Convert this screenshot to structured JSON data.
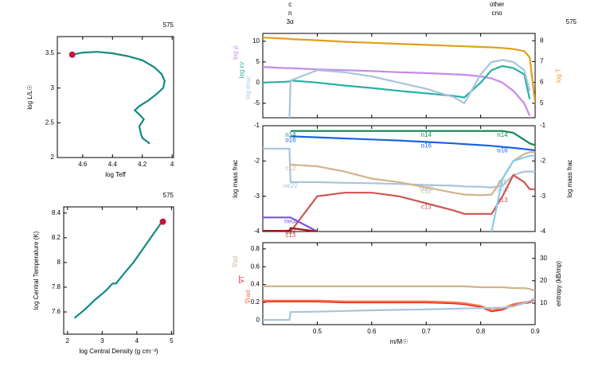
{
  "chart_data": [
    {
      "type": "line",
      "corner_label": "575",
      "xlabel": "log Teff",
      "ylabel": "log L/L☉",
      "xlim": [
        4.77,
        3.99
      ],
      "xticks": [
        4.6,
        4.4,
        4.2,
        4
      ],
      "ylim": [
        2,
        3.74
      ],
      "yticks": [
        2,
        2.5,
        3,
        3.5
      ],
      "x": [
        4.67,
        4.6,
        4.5,
        4.4,
        4.3,
        4.2,
        4.12,
        4.07,
        4.05,
        4.06,
        4.1,
        4.16,
        4.22,
        4.25,
        4.22,
        4.19,
        4.22,
        4.21,
        4.2,
        4.15
      ],
      "series": [
        {
          "color": "#138a82",
          "values": [
            3.48,
            3.51,
            3.52,
            3.5,
            3.46,
            3.4,
            3.3,
            3.2,
            3.1,
            3.0,
            2.92,
            2.82,
            2.74,
            2.68,
            2.62,
            2.55,
            2.45,
            2.35,
            2.28,
            2.2
          ]
        }
      ],
      "marker": {
        "x": 4.67,
        "y": 3.48,
        "color": "#c4173b"
      }
    },
    {
      "type": "line",
      "corner_label": "575",
      "xlabel": "log Central Density (g cm⁻³)",
      "ylabel": "log Central Temperature (K)",
      "xlim": [
        1.89,
        5.06
      ],
      "xticks": [
        2,
        3,
        4,
        5
      ],
      "ylim": [
        7.42,
        8.45
      ],
      "yticks": [
        7.6,
        7.8,
        8,
        8.2,
        8.4
      ],
      "x": [
        2.2,
        2.5,
        2.8,
        3.1,
        3.3,
        3.4,
        3.6,
        3.9,
        4.2,
        4.5,
        4.7
      ],
      "series": [
        {
          "color": "#138a82",
          "values": [
            7.55,
            7.62,
            7.7,
            7.77,
            7.83,
            7.83,
            7.9,
            8.0,
            8.12,
            8.24,
            8.32
          ]
        }
      ],
      "marker": {
        "x": 4.75,
        "y": 8.33,
        "color": "#c4173b"
      }
    },
    {
      "type": "line",
      "corner_label": "575",
      "legend": "left",
      "top_labels": [
        {
          "x": 0.45,
          "lines": [
            "c",
            "n",
            "3α"
          ]
        },
        {
          "x": 0.83,
          "lines": [
            "other",
            "cno"
          ]
        }
      ],
      "xlim": [
        0.4,
        0.9
      ],
      "xticks": [
        0.5,
        0.6,
        0.7,
        0.8,
        0.9
      ],
      "ylim": [
        -8.5,
        11.9
      ],
      "yticks": [
        -5,
        0,
        5,
        10
      ],
      "y2lim": [
        4.3,
        8.35
      ],
      "y2ticks": [
        5,
        6,
        7,
        8
      ],
      "x": [
        0.4,
        0.44,
        0.449,
        0.451,
        0.5,
        0.55,
        0.6,
        0.65,
        0.7,
        0.75,
        0.77,
        0.8,
        0.82,
        0.84,
        0.86,
        0.88,
        0.89,
        0.9
      ],
      "series": [
        {
          "name": "log T",
          "color": "#e0a018",
          "axis": "y2",
          "values": [
            8.15,
            8.1,
            8.09,
            8.08,
            8.02,
            7.95,
            7.9,
            7.85,
            7.8,
            7.75,
            7.73,
            7.7,
            7.68,
            7.65,
            7.6,
            7.5,
            7.2,
            5.0
          ]
        },
        {
          "name": "log ρ",
          "color": "#c58be8",
          "values": [
            3.8,
            3.5,
            3.5,
            3.5,
            3.2,
            3.0,
            2.8,
            2.5,
            2.3,
            2.0,
            1.9,
            1.5,
            1.0,
            0.0,
            -2,
            -5,
            -8,
            null
          ]
        },
        {
          "name": "log εν",
          "color": "#27b0a6",
          "values": [
            0,
            0.2,
            0.3,
            0.5,
            0,
            -0.7,
            -1.3,
            -2,
            -2.6,
            -3.2,
            -3.6,
            0,
            3,
            4,
            3.5,
            2,
            -4,
            null
          ]
        },
        {
          "name": "log εnuc",
          "color": "#aac4dc",
          "values": [
            null,
            null,
            -8.5,
            0.5,
            3,
            2.5,
            1.5,
            0,
            -1.5,
            -3.5,
            -5,
            2,
            5,
            5.5,
            5,
            3,
            -2,
            null
          ]
        }
      ]
    },
    {
      "type": "line",
      "legend": "inline",
      "ylabel": "log mass frac",
      "y2label": "log mass frac",
      "xlim": [
        0.4,
        0.9
      ],
      "xticks": [
        0.5,
        0.6,
        0.7,
        0.8,
        0.9
      ],
      "ylim": [
        -4,
        -1
      ],
      "yticks": [
        -4,
        -3,
        -2,
        -1
      ],
      "y2lim": [
        -4,
        -1
      ],
      "y2ticks": [
        -4,
        -3,
        -2,
        -1
      ],
      "x": [
        0.4,
        0.44,
        0.449,
        0.451,
        0.5,
        0.55,
        0.6,
        0.65,
        0.7,
        0.75,
        0.77,
        0.8,
        0.82,
        0.84,
        0.86,
        0.88,
        0.89,
        0.9
      ],
      "series": [
        {
          "name": "ne22",
          "color": "#aac4dc",
          "values": [
            -1.65,
            -1.65,
            -1.65,
            -2.6,
            -2.6,
            -2.62,
            -2.63,
            -2.65,
            -2.68,
            -2.7,
            -2.72,
            -2.73,
            -2.75,
            -2.7,
            -2.4,
            -2.3,
            -2.3,
            -2.3
          ]
        },
        {
          "name": "c12",
          "color": "#d2b48c",
          "values": [
            null,
            null,
            null,
            -2.1,
            -2.15,
            -2.3,
            -2.5,
            -2.6,
            -2.75,
            -2.9,
            -2.95,
            -2.97,
            -2.95,
            -2.5,
            -2.0,
            -1.8,
            -1.75,
            -1.75
          ]
        },
        {
          "name": "c13",
          "color": "#cd5555",
          "values": [
            null,
            null,
            null,
            -4,
            -3.0,
            -2.9,
            -2.9,
            -3.0,
            -3.2,
            -3.4,
            -3.5,
            -3.5,
            -3.5,
            -3.0,
            -2.4,
            -2.6,
            -2.8,
            -2.8
          ]
        },
        {
          "name": "h1",
          "color": "#87cbec",
          "values": [
            null,
            null,
            null,
            null,
            null,
            null,
            null,
            null,
            null,
            null,
            null,
            null,
            -4,
            -2.5,
            -2.0,
            -1.9,
            -1.85,
            -1.85
          ]
        },
        {
          "name": "o16",
          "color": "#1c64e0",
          "values": [
            null,
            null,
            null,
            -1.3,
            -1.33,
            -1.36,
            -1.39,
            -1.42,
            -1.46,
            -1.5,
            -1.52,
            -1.55,
            -1.57,
            -1.6,
            -1.63,
            -1.66,
            -1.68,
            -1.7
          ]
        },
        {
          "name": "n14",
          "color": "#178a5a",
          "values": [
            null,
            null,
            null,
            -1.15,
            -1.15,
            -1.15,
            -1.15,
            -1.15,
            -1.15,
            -1.15,
            -1.15,
            -1.15,
            -1.15,
            -1.15,
            -1.2,
            -1.4,
            -1.5,
            -1.55
          ]
        },
        {
          "name": "neut",
          "color": "#7b52e0",
          "values": [
            -3.6,
            -3.6,
            -3.6,
            -3.6,
            -4,
            null,
            null,
            null,
            null,
            null,
            null,
            null,
            null,
            null,
            null,
            null,
            null,
            null
          ]
        },
        {
          "name": "o17",
          "color": "#a01818",
          "values": [
            -3.98,
            -3.98,
            -3.97,
            -3.9,
            -4,
            null,
            null,
            null,
            null,
            null,
            null,
            null,
            null,
            null,
            null,
            null,
            null,
            null
          ]
        }
      ]
    },
    {
      "type": "line",
      "legend": "left",
      "xlabel": "m/M☉",
      "xlim": [
        0.4,
        0.9
      ],
      "xticks": [
        0.5,
        0.6,
        0.7,
        0.8,
        0.9
      ],
      "ylim": [
        -0.05,
        0.87
      ],
      "yticks": [
        0,
        0.2,
        0.4,
        0.6,
        0.8
      ],
      "y2lim": [
        0.4,
        37
      ],
      "y2ticks": [
        10,
        20,
        30
      ],
      "x": [
        0.4,
        0.44,
        0.449,
        0.451,
        0.5,
        0.55,
        0.6,
        0.65,
        0.7,
        0.75,
        0.77,
        0.8,
        0.82,
        0.84,
        0.86,
        0.88,
        0.89,
        0.9
      ],
      "series": [
        {
          "name": "∇ad",
          "color": "#d2b48c",
          "values": [
            0.38,
            0.38,
            0.38,
            0.38,
            0.38,
            0.38,
            0.38,
            0.38,
            0.38,
            0.38,
            0.38,
            0.37,
            0.37,
            0.37,
            0.36,
            0.36,
            0.35,
            0.33
          ]
        },
        {
          "name": "∇T",
          "color": "#e02020",
          "values": [
            0.21,
            0.21,
            0.21,
            0.21,
            0.21,
            0.2,
            0.2,
            0.2,
            0.2,
            0.19,
            0.18,
            0.15,
            0.1,
            0.12,
            0.17,
            0.19,
            0.2,
            0.24
          ]
        },
        {
          "name": "∇rad",
          "color": "#ff7043",
          "values": [
            0.22,
            0.22,
            0.22,
            0.22,
            0.22,
            0.21,
            0.21,
            0.21,
            0.21,
            0.2,
            0.19,
            0.16,
            0.11,
            0.13,
            0.18,
            0.2,
            0.21,
            0.25
          ]
        },
        {
          "name": "entropy (kB/mp)",
          "color": "#aac4dc",
          "label_color": "#000000",
          "axis": "y2",
          "values": [
            2.5,
            2.5,
            2.5,
            6,
            6.2,
            6.5,
            6.8,
            7,
            7.2,
            7.5,
            7.6,
            7.8,
            7.9,
            8,
            8.5,
            10,
            11,
            12
          ]
        }
      ]
    }
  ]
}
